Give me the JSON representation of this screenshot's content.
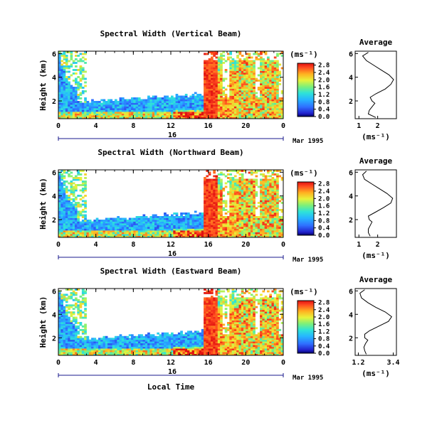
{
  "chart_data": [
    {
      "type": "heatmap",
      "title": "Spectral Width (Vertical Beam)",
      "ylabel": "Height (km)",
      "xticks": [
        "0",
        "4",
        "8",
        "12",
        "16",
        "20",
        "0"
      ],
      "yticks": [
        "2",
        "4",
        "6"
      ],
      "xlim": [
        0,
        24
      ],
      "ylim": [
        0.5,
        6.2
      ],
      "date_marker": "16",
      "date_label": "Mar 1995",
      "colorbar": {
        "unit": "(ms⁻¹)",
        "ticks": [
          "0.0",
          "0.4",
          "0.8",
          "1.2",
          "1.6",
          "2.0",
          "2.4",
          "2.8"
        ],
        "range": [
          0,
          2.9
        ]
      },
      "average": {
        "title": "Average",
        "xlabel": "(ms⁻¹)",
        "xticks": [
          "1",
          "2"
        ],
        "xlim": [
          0.8,
          3.0
        ],
        "yticks": [
          "2",
          "4",
          "6"
        ],
        "ylim": [
          0.5,
          6.2
        ],
        "profile": [
          {
            "h": 0.6,
            "w": 1.9
          },
          {
            "h": 0.9,
            "w": 1.5
          },
          {
            "h": 1.2,
            "w": 1.55
          },
          {
            "h": 1.5,
            "w": 1.7
          },
          {
            "h": 1.8,
            "w": 1.85
          },
          {
            "h": 2.0,
            "w": 1.7
          },
          {
            "h": 2.3,
            "w": 1.6
          },
          {
            "h": 2.6,
            "w": 1.9
          },
          {
            "h": 3.0,
            "w": 2.4
          },
          {
            "h": 3.4,
            "w": 2.7
          },
          {
            "h": 3.8,
            "w": 2.85
          },
          {
            "h": 4.2,
            "w": 2.6
          },
          {
            "h": 4.6,
            "w": 2.2
          },
          {
            "h": 5.0,
            "w": 1.8
          },
          {
            "h": 5.4,
            "w": 1.4
          },
          {
            "h": 5.8,
            "w": 1.2
          },
          {
            "h": 6.1,
            "w": 1.5
          }
        ]
      }
    },
    {
      "type": "heatmap",
      "title": "Spectral Width (Northward Beam)",
      "ylabel": "Height (km)",
      "xticks": [
        "0",
        "4",
        "8",
        "12",
        "16",
        "20",
        "0"
      ],
      "yticks": [
        "2",
        "4",
        "6"
      ],
      "xlim": [
        0,
        24
      ],
      "ylim": [
        0.5,
        6.2
      ],
      "date_marker": "16",
      "date_label": "Mar 1995",
      "colorbar": {
        "unit": "(ms⁻¹)",
        "ticks": [
          "0.0",
          "0.4",
          "0.8",
          "1.2",
          "1.6",
          "2.0",
          "2.4",
          "2.8"
        ],
        "range": [
          0,
          2.9
        ]
      },
      "average": {
        "title": "Average",
        "xlabel": "(ms⁻¹)",
        "xticks": [
          "1",
          "2"
        ],
        "xlim": [
          0.8,
          3.0
        ],
        "yticks": [
          "2",
          "4",
          "6"
        ],
        "ylim": [
          0.5,
          6.2
        ],
        "profile": [
          {
            "h": 0.6,
            "w": 1.6
          },
          {
            "h": 0.9,
            "w": 1.5
          },
          {
            "h": 1.2,
            "w": 1.5
          },
          {
            "h": 1.5,
            "w": 1.6
          },
          {
            "h": 1.8,
            "w": 1.7
          },
          {
            "h": 2.0,
            "w": 1.55
          },
          {
            "h": 2.3,
            "w": 1.5
          },
          {
            "h": 2.6,
            "w": 1.85
          },
          {
            "h": 3.0,
            "w": 2.3
          },
          {
            "h": 3.4,
            "w": 2.7
          },
          {
            "h": 3.8,
            "w": 2.8
          },
          {
            "h": 4.2,
            "w": 2.5
          },
          {
            "h": 4.6,
            "w": 2.1
          },
          {
            "h": 5.0,
            "w": 1.7
          },
          {
            "h": 5.4,
            "w": 1.3
          },
          {
            "h": 5.8,
            "w": 1.2
          },
          {
            "h": 6.1,
            "w": 1.4
          }
        ]
      }
    },
    {
      "type": "heatmap",
      "title": "Spectral Width (Eastward Beam)",
      "ylabel": "Height (km)",
      "xticks": [
        "0",
        "4",
        "8",
        "12",
        "16",
        "20",
        "0"
      ],
      "yticks": [
        "2",
        "4",
        "6"
      ],
      "xlim": [
        0,
        24
      ],
      "ylim": [
        0.5,
        6.2
      ],
      "date_marker": "16",
      "date_label": "Mar 1995",
      "xlabel": "Local Time",
      "colorbar": {
        "unit": "(ms⁻¹)",
        "ticks": [
          "0.0",
          "0.4",
          "0.8",
          "1.2",
          "1.6",
          "2.0",
          "2.4",
          "2.8"
        ],
        "range": [
          0,
          2.9
        ]
      },
      "average": {
        "title": "Average",
        "xlabel": "(ms⁻¹)",
        "xticks": [
          "1.2",
          "3.4"
        ],
        "xlim": [
          1.0,
          3.6
        ],
        "yticks": [
          "2",
          "4",
          "6"
        ],
        "ylim": [
          0.5,
          6.2
        ],
        "profile": [
          {
            "h": 0.6,
            "w": 1.7
          },
          {
            "h": 0.9,
            "w": 1.6
          },
          {
            "h": 1.2,
            "w": 1.55
          },
          {
            "h": 1.5,
            "w": 1.65
          },
          {
            "h": 1.8,
            "w": 1.8
          },
          {
            "h": 2.0,
            "w": 1.6
          },
          {
            "h": 2.3,
            "w": 1.6
          },
          {
            "h": 2.6,
            "w": 1.9
          },
          {
            "h": 3.0,
            "w": 2.5
          },
          {
            "h": 3.4,
            "w": 3.1
          },
          {
            "h": 3.8,
            "w": 3.3
          },
          {
            "h": 4.2,
            "w": 2.9
          },
          {
            "h": 4.6,
            "w": 2.3
          },
          {
            "h": 5.0,
            "w": 1.8
          },
          {
            "h": 5.4,
            "w": 1.4
          },
          {
            "h": 5.8,
            "w": 1.3
          },
          {
            "h": 6.1,
            "w": 1.6
          }
        ]
      }
    }
  ]
}
